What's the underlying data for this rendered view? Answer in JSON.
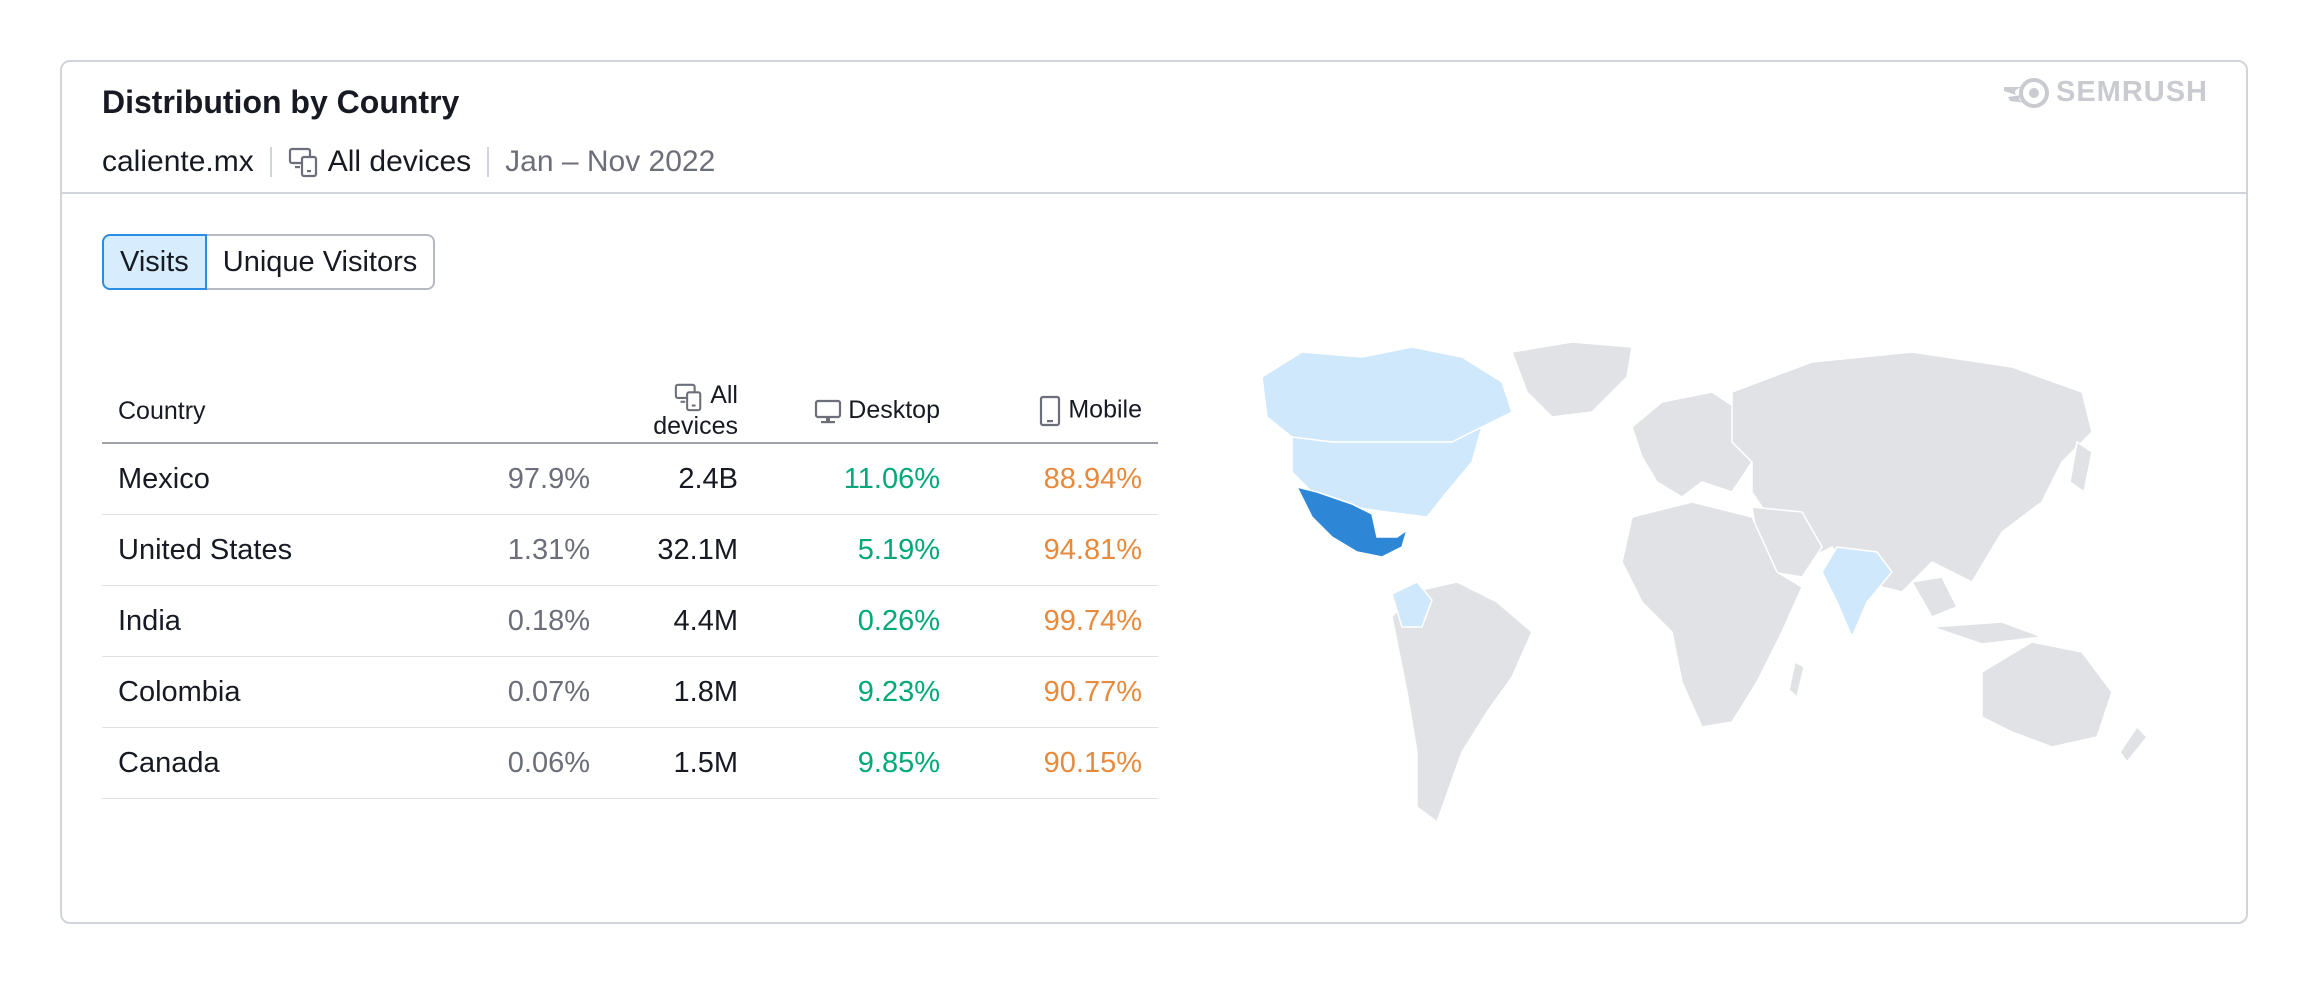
{
  "header": {
    "title": "Distribution by  Country",
    "domain": "caliente.mx",
    "devices": "All devices",
    "period": "Jan – Nov 2022",
    "logo": "SEMRUSH"
  },
  "tabs": [
    {
      "label": "Visits",
      "active": true
    },
    {
      "label": "Unique Visitors",
      "active": false
    }
  ],
  "table": {
    "columns": {
      "country": "Country",
      "all": "All devices",
      "desktop": "Desktop",
      "mobile": "Mobile"
    },
    "rows": [
      {
        "country": "Mexico",
        "share": "97.9%",
        "all": "2.4B",
        "desktop": "11.06%",
        "mobile": "88.94%"
      },
      {
        "country": "United States",
        "share": "1.31%",
        "all": "32.1M",
        "desktop": "5.19%",
        "mobile": "94.81%"
      },
      {
        "country": "India",
        "share": "0.18%",
        "all": "4.4M",
        "desktop": "0.26%",
        "mobile": "99.74%"
      },
      {
        "country": "Colombia",
        "share": "0.07%",
        "all": "1.8M",
        "desktop": "9.23%",
        "mobile": "90.77%"
      },
      {
        "country": "Canada",
        "share": "0.06%",
        "all": "1.5M",
        "desktop": "9.85%",
        "mobile": "90.15%"
      }
    ]
  },
  "icons": {
    "devices": "all-devices-icon",
    "desktop": "desktop-icon",
    "mobile": "mobile-icon",
    "logo": "semrush-flame-icon"
  },
  "colors": {
    "desktop": "#00a87a",
    "mobile": "#e88a3c",
    "map_top": "#2e86d6",
    "map_other": "#cfe8fb",
    "map_base": "#e1e2e6",
    "accent": "#2b8de0"
  }
}
